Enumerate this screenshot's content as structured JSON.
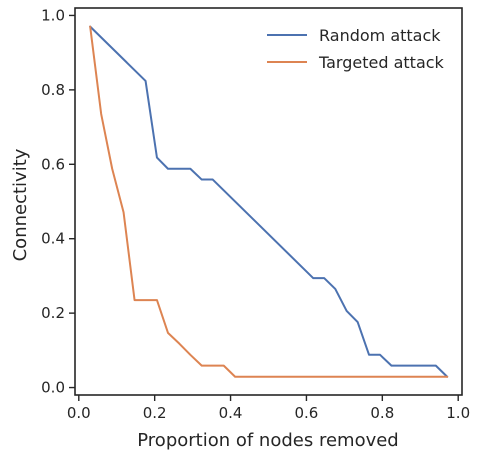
{
  "chart_data": {
    "type": "line",
    "xlabel": "Proportion of nodes removed",
    "ylabel": "Connectivity",
    "xlim": [
      -0.01,
      1.01
    ],
    "ylim": [
      -0.02,
      1.02
    ],
    "xticks": [
      0.0,
      0.2,
      0.4,
      0.6,
      0.8,
      1.0
    ],
    "xtick_labels": [
      "0.0",
      "0.2",
      "0.4",
      "0.6",
      "0.8",
      "1.0"
    ],
    "yticks": [
      0.0,
      0.2,
      0.4,
      0.6,
      0.8,
      1.0
    ],
    "ytick_labels": [
      "0.0",
      "0.2",
      "0.4",
      "0.6",
      "0.8",
      "1.0"
    ],
    "grid": false,
    "legend_position": "top-right",
    "series": [
      {
        "name": "Random attack",
        "color": "#4c72b0",
        "x": [
          0.03,
          0.176,
          0.206,
          0.235,
          0.294,
          0.324,
          0.353,
          0.618,
          0.647,
          0.676,
          0.706,
          0.735,
          0.765,
          0.794,
          0.824,
          0.853,
          0.941,
          0.971
        ],
        "y": [
          0.97,
          0.824,
          0.618,
          0.588,
          0.588,
          0.559,
          0.559,
          0.294,
          0.294,
          0.265,
          0.206,
          0.176,
          0.088,
          0.088,
          0.059,
          0.059,
          0.059,
          0.029
        ]
      },
      {
        "name": "Targeted attack",
        "color": "#dd8452",
        "x": [
          0.03,
          0.059,
          0.088,
          0.118,
          0.147,
          0.176,
          0.206,
          0.235,
          0.265,
          0.294,
          0.324,
          0.353,
          0.382,
          0.412,
          0.971
        ],
        "y": [
          0.97,
          0.735,
          0.588,
          0.471,
          0.235,
          0.235,
          0.235,
          0.147,
          0.118,
          0.088,
          0.059,
          0.059,
          0.059,
          0.029,
          0.029
        ]
      }
    ]
  }
}
